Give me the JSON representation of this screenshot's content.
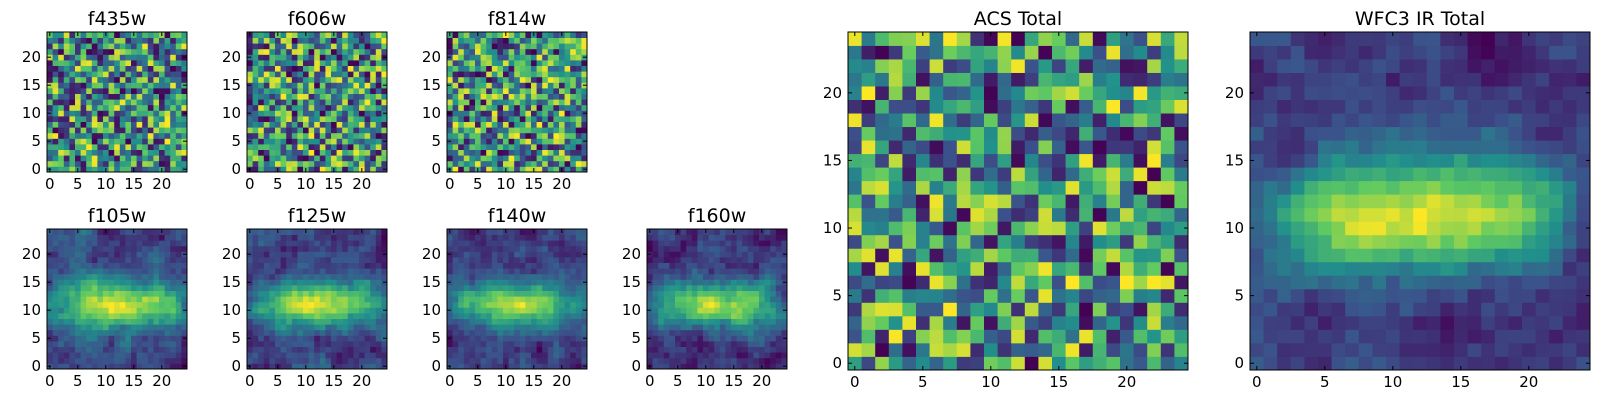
{
  "figure_colormap": [
    "#440154",
    "#3b528b",
    "#21918c",
    "#5ec962",
    "#fde725"
  ],
  "chart_data": [
    {
      "id": "f435w",
      "type": "heatmap",
      "title": "f435w",
      "grid_size": 25,
      "seed": 11,
      "smooth": 0,
      "xticks": [
        0,
        5,
        10,
        15,
        20
      ],
      "yticks": [
        0,
        5,
        10,
        15,
        20
      ],
      "xlim": [
        -0.5,
        24.5
      ],
      "ylim": [
        -0.5,
        24.5
      ],
      "colormap": "viridis"
    },
    {
      "id": "f606w",
      "type": "heatmap",
      "title": "f606w",
      "grid_size": 25,
      "seed": 23,
      "smooth": 0,
      "xticks": [
        0,
        5,
        10,
        15,
        20
      ],
      "yticks": [
        0,
        5,
        10,
        15,
        20
      ],
      "xlim": [
        -0.5,
        24.5
      ],
      "ylim": [
        -0.5,
        24.5
      ],
      "colormap": "viridis"
    },
    {
      "id": "f814w",
      "type": "heatmap",
      "title": "f814w",
      "grid_size": 25,
      "seed": 37,
      "smooth": 0,
      "xticks": [
        0,
        5,
        10,
        15,
        20
      ],
      "yticks": [
        0,
        5,
        10,
        15,
        20
      ],
      "xlim": [
        -0.5,
        24.5
      ],
      "ylim": [
        -0.5,
        24.5
      ],
      "colormap": "viridis"
    },
    {
      "id": "f105w",
      "type": "heatmap",
      "title": "f105w",
      "grid_size": 25,
      "seed": 41,
      "smooth": 1,
      "xticks": [
        0,
        5,
        10,
        15,
        20
      ],
      "yticks": [
        0,
        5,
        10,
        15,
        20
      ],
      "xlim": [
        -0.5,
        24.5
      ],
      "ylim": [
        -0.5,
        24.5
      ],
      "colormap": "viridis"
    },
    {
      "id": "f125w",
      "type": "heatmap",
      "title": "f125w",
      "grid_size": 25,
      "seed": 53,
      "smooth": 1,
      "xticks": [
        0,
        5,
        10,
        15,
        20
      ],
      "yticks": [
        0,
        5,
        10,
        15,
        20
      ],
      "xlim": [
        -0.5,
        24.5
      ],
      "ylim": [
        -0.5,
        24.5
      ],
      "colormap": "viridis"
    },
    {
      "id": "f140w",
      "type": "heatmap",
      "title": "f140w",
      "grid_size": 25,
      "seed": 67,
      "smooth": 1,
      "xticks": [
        0,
        5,
        10,
        15,
        20
      ],
      "yticks": [
        0,
        5,
        10,
        15,
        20
      ],
      "xlim": [
        -0.5,
        24.5
      ],
      "ylim": [
        -0.5,
        24.5
      ],
      "colormap": "viridis"
    },
    {
      "id": "f160w",
      "type": "heatmap",
      "title": "f160w",
      "grid_size": 25,
      "seed": 79,
      "smooth": 1,
      "xticks": [
        0,
        5,
        10,
        15,
        20
      ],
      "yticks": [
        0,
        5,
        10,
        15,
        20
      ],
      "xlim": [
        -0.5,
        24.5
      ],
      "ylim": [
        -0.5,
        24.5
      ],
      "colormap": "viridis"
    },
    {
      "id": "acs-total",
      "type": "heatmap",
      "title": "ACS Total",
      "grid_size": 25,
      "seed": 97,
      "smooth": 0,
      "xticks": [
        0,
        5,
        10,
        15,
        20
      ],
      "yticks": [
        0,
        5,
        10,
        15,
        20
      ],
      "xlim": [
        -0.5,
        24.5
      ],
      "ylim": [
        -0.5,
        24.5
      ],
      "colormap": "viridis"
    },
    {
      "id": "wfc3-ir-total",
      "type": "heatmap",
      "title": "WFC3 IR Total",
      "grid_size": 25,
      "seed": 113,
      "smooth": 2,
      "xticks": [
        0,
        5,
        10,
        15,
        20
      ],
      "yticks": [
        0,
        5,
        10,
        15,
        20
      ],
      "xlim": [
        -0.5,
        24.5
      ],
      "ylim": [
        -0.5,
        24.5
      ],
      "colormap": "viridis"
    }
  ]
}
